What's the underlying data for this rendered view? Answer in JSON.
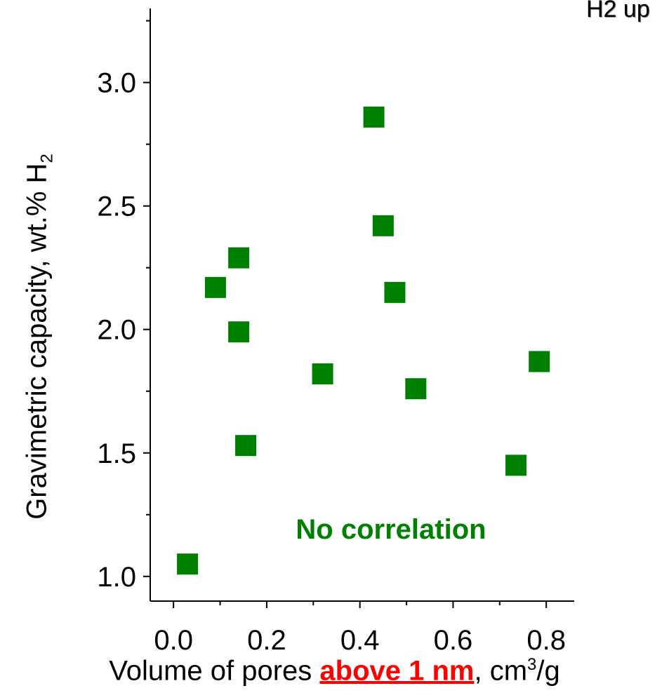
{
  "corner_title": "H2 up",
  "chart_data": {
    "type": "scatter",
    "x_ticks": [
      "0.0",
      "0.2",
      "0.4",
      "0.6",
      "0.8"
    ],
    "y_ticks": [
      "1.0",
      "1.5",
      "2.0",
      "2.5",
      "3.0"
    ],
    "xlim": [
      -0.05,
      0.86
    ],
    "ylim": [
      0.9,
      3.3
    ],
    "x_minor_step": 0.1,
    "y_minor_step": 0.25,
    "ylabel_main": "Gravimetric capacity, wt.% H",
    "ylabel_sub": "2",
    "xlabel_before": "Volume of pores ",
    "xlabel_highlight": "above 1 nm",
    "xlabel_after": ", cm",
    "xlabel_sup": "3",
    "xlabel_tail": "/g",
    "annotation": "No correlation",
    "marker_color": "#008000",
    "highlight_color": "#ff0000",
    "points": [
      {
        "x": 0.03,
        "y": 1.05
      },
      {
        "x": 0.09,
        "y": 2.17
      },
      {
        "x": 0.14,
        "y": 2.29
      },
      {
        "x": 0.14,
        "y": 1.99
      },
      {
        "x": 0.155,
        "y": 1.53
      },
      {
        "x": 0.32,
        "y": 1.82
      },
      {
        "x": 0.43,
        "y": 2.86
      },
      {
        "x": 0.45,
        "y": 2.42
      },
      {
        "x": 0.475,
        "y": 2.15
      },
      {
        "x": 0.52,
        "y": 1.76
      },
      {
        "x": 0.735,
        "y": 1.45
      },
      {
        "x": 0.785,
        "y": 1.87
      }
    ]
  }
}
